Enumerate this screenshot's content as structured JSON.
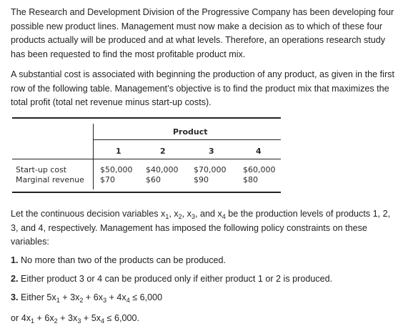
{
  "paragraph1": "The Research and Development Division of the Progressive Company has been developing four possible new product lines. Management must now make a decision as to which of these four products actually will be produced and at what levels. Therefore, an operations research study has been requested to find the most profitable product mix.",
  "paragraph2": "A substantial cost is associated with beginning the production of any product, as given in the first row of the following table. Management’s objective is to find the product mix that maximizes the total profit (total net revenue minus start-up costs).",
  "table": {
    "group_header": "Product",
    "columns": [
      "1",
      "2",
      "3",
      "4"
    ],
    "rows": [
      {
        "label": "Start-up cost",
        "values": [
          "$50,000",
          "$40,000",
          "$70,000",
          "$60,000"
        ]
      },
      {
        "label": "Marginal revenue",
        "values": [
          "$70",
          "$60",
          "$90",
          "$80"
        ]
      }
    ]
  },
  "paragraph3": {
    "a": "Let the continuous decision variables x",
    "s1": "1",
    "b": ", x",
    "s2": "2",
    "c": ", x",
    "s3": "3",
    "d": ", and x",
    "s4": "4",
    "e": " be the production levels of products 1, 2, 3, and 4, respectively. Management has imposed the following policy constraints on these variables:"
  },
  "constraints": {
    "c1": {
      "num": "1.",
      "text": " No more than two of the products can be produced."
    },
    "c2": {
      "num": "2.",
      "text": " Either product 3 or 4 can be produced only if either product 1 or 2 is produced."
    },
    "c3": {
      "num": "3.",
      "a": " Either 5x",
      "s1": "1",
      "b": " + 3x",
      "s2": "2",
      "c": " + 6x",
      "s3": "3",
      "d": " + 4x",
      "s4": "4",
      "e": " ≤ 6,000"
    },
    "c4": {
      "a": "or 4x",
      "s1": "1",
      "b": " + 6x",
      "s2": "2",
      "c": " + 3x",
      "s3": "3",
      "d": " + 5x",
      "s4": "4",
      "e": " ≤ 6,000."
    }
  }
}
